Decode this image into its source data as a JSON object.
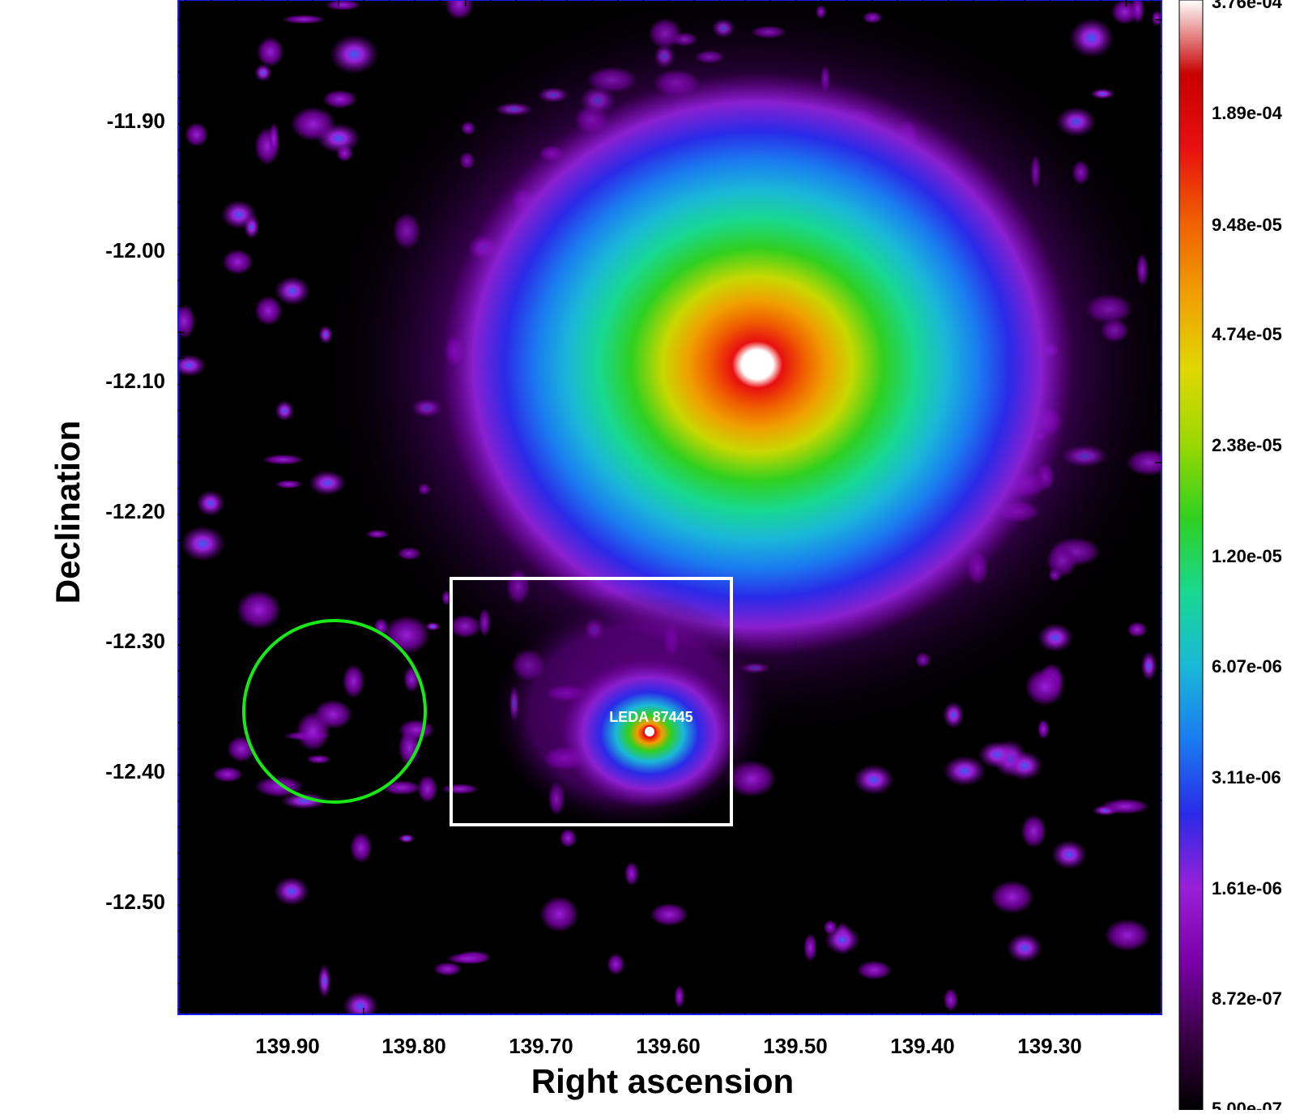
{
  "figure": {
    "xlabel": "Right ascension",
    "ylabel": "Declination",
    "x_ticks": [
      "139.90",
      "139.80",
      "139.70",
      "139.60",
      "139.50",
      "139.40",
      "139.30"
    ],
    "y_ticks": [
      "-11.90",
      "-12.00",
      "-12.10",
      "-12.20",
      "-12.30",
      "-12.40",
      "-12.50"
    ],
    "source_label": "LEDA 87445",
    "colorbar_ticks": [
      "3.76e-04",
      "1.89e-04",
      "9.48e-05",
      "4.74e-05",
      "2.38e-05",
      "1.20e-05",
      "6.07e-06",
      "3.11e-06",
      "1.61e-06",
      "8.72e-07",
      "5.00e-07"
    ],
    "colormap_stops": [
      "#000000",
      "#3a0046",
      "#7a00a8",
      "#9a20d8",
      "#2a2ae8",
      "#1a7cf0",
      "#1ab8d8",
      "#18d890",
      "#30d020",
      "#9ad800",
      "#e0d800",
      "#f0a000",
      "#f06000",
      "#e81010",
      "#c80000",
      "#ffffff"
    ],
    "colors": {
      "frame": "#1a1aff",
      "background_region": "#18e818",
      "zoom_box": "#ffffff"
    }
  }
}
